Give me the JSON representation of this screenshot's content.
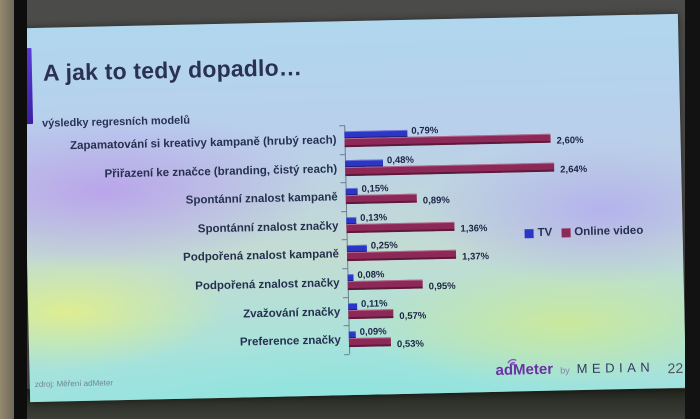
{
  "slide": {
    "title": "A jak to tedy dopadlo…",
    "subtitle": "výsledky regresních modelů",
    "source": "zdroj: Měření adMeter",
    "page_number": "22",
    "logo": {
      "admeter": "adMeter",
      "by": "by",
      "median": "MEDIAN"
    }
  },
  "chart_data": {
    "type": "bar",
    "orientation": "horizontal",
    "title": "",
    "xlabel": "",
    "ylabel": "",
    "xlim": [
      0,
      2.75
    ],
    "grid": false,
    "legend_position": "right-middle",
    "categories": [
      "Zapamatování si kreativy kampaně (hrubý reach)",
      "Přiřazení ke značce (branding, čistý reach)",
      "Spontánní znalost kampaně",
      "Spontánní znalost značky",
      "Podpořená znalost kampaně",
      "Podpořená znalost značky",
      "Zvažování značky",
      "Preference značky"
    ],
    "series": [
      {
        "name": "TV",
        "color": "#2c36c6",
        "values": [
          0.79,
          0.48,
          0.15,
          0.13,
          0.25,
          0.08,
          0.11,
          0.09
        ],
        "value_labels": [
          "0,79%",
          "0,48%",
          "0,15%",
          "0,13%",
          "0,25%",
          "0,08%",
          "0,11%",
          "0,09%"
        ]
      },
      {
        "name": "Online video",
        "color": "#8e2858",
        "values": [
          2.6,
          2.64,
          0.89,
          1.36,
          1.37,
          0.95,
          0.57,
          0.53
        ],
        "value_labels": [
          "2,60%",
          "2,64%",
          "0,89%",
          "1,36%",
          "1,37%",
          "0,95%",
          "0,57%",
          "0,53%"
        ]
      }
    ]
  },
  "colors": {
    "accent_bar_top": "#5a3bd8",
    "accent_bar_bottom": "#3a20a0",
    "admeter_purple": "#6d2fa6",
    "median_navy": "#323a63",
    "text_dark": "#2b3154"
  }
}
